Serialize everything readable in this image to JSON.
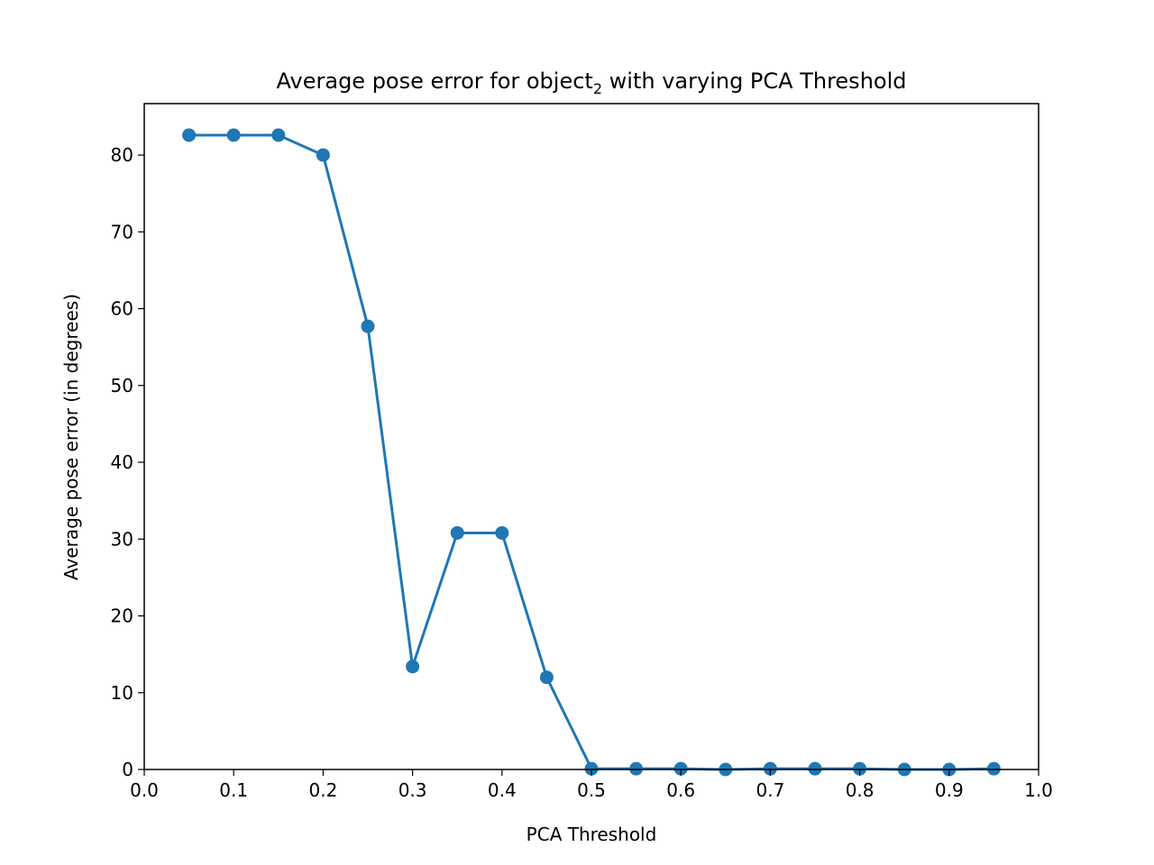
{
  "chart_data": {
    "type": "line",
    "title": {
      "prefix": "Average pose error for object",
      "subscript": "2",
      "suffix": " with varying PCA Threshold"
    },
    "xlabel": "PCA Threshold",
    "ylabel": "Average pose error (in degrees)",
    "xlim": [
      0.0,
      1.0
    ],
    "ylim": [
      0,
      86.7
    ],
    "xticks": [
      "0.0",
      "0.1",
      "0.2",
      "0.3",
      "0.4",
      "0.5",
      "0.6",
      "0.7",
      "0.8",
      "0.9",
      "1.0"
    ],
    "yticks": [
      "0",
      "10",
      "20",
      "30",
      "40",
      "50",
      "60",
      "70",
      "80"
    ],
    "grid": false,
    "series": [
      {
        "color": "#1f77b4",
        "marker": "circle",
        "x": [
          0.05,
          0.1,
          0.15,
          0.2,
          0.25,
          0.3,
          0.35,
          0.4,
          0.45,
          0.5,
          0.55,
          0.6,
          0.65,
          0.7,
          0.75,
          0.8,
          0.85,
          0.9,
          0.95
        ],
        "y": [
          82.6,
          82.6,
          82.6,
          80.0,
          57.7,
          13.4,
          30.8,
          30.8,
          12.0,
          0.1,
          0.1,
          0.1,
          0.0,
          0.1,
          0.1,
          0.1,
          0.0,
          0.0,
          0.1
        ]
      }
    ]
  }
}
